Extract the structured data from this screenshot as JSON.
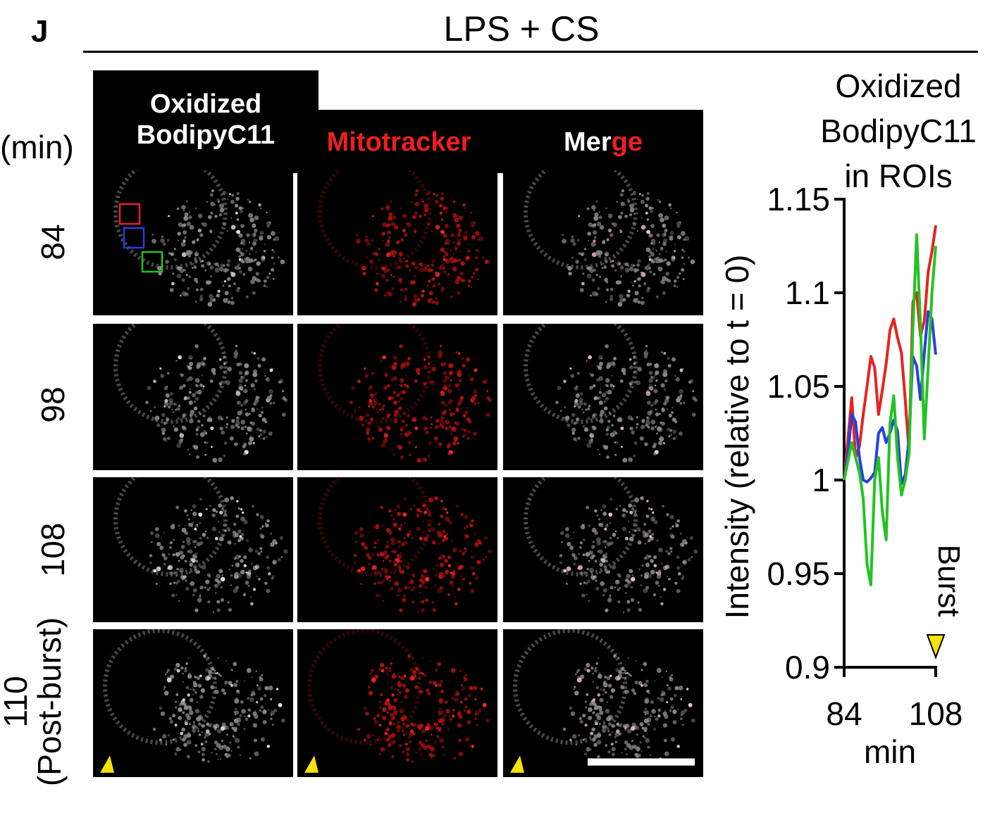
{
  "figure": {
    "panel_letter": "J",
    "condition": "LPS + CS",
    "unit_label": "(min)",
    "columns": [
      {
        "label_plain": "Oxidized",
        "label_line2": "BodipyC11"
      },
      {
        "label": "Mitotracker"
      },
      {
        "label_white": "Mer",
        "label_red": "ge"
      }
    ],
    "rows": [
      {
        "time": "84"
      },
      {
        "time": "98"
      },
      {
        "time": "108"
      },
      {
        "time": "110",
        "note": "(Post-burst)"
      }
    ],
    "roi_colors": [
      "#e52420",
      "#2a3ee0",
      "#22c322"
    ],
    "marker_color": "#f4e20a",
    "icons": [
      "burst-arrowhead-icon",
      "scale-bar"
    ]
  },
  "plot": {
    "title_line1": "Oxidized",
    "title_line2": "BodipyC11",
    "title_line3": "in ROIs",
    "burst_label": "Burst"
  },
  "chart_data": {
    "type": "line",
    "title": "Oxidized BodipyC11 in ROIs",
    "xlabel": "min",
    "ylabel": "Intensity (relative to t = 0)",
    "xlim": [
      84,
      108
    ],
    "ylim": [
      0.9,
      1.15
    ],
    "xticks": [
      84,
      108
    ],
    "yticks": [
      0.9,
      0.95,
      1,
      1.05,
      1.1,
      1.15
    ],
    "ytick_labels": [
      "0.9",
      "0.95",
      "1",
      "1.05",
      "1.1",
      "1.15"
    ],
    "xtick_labels": [
      "84",
      "108"
    ],
    "annotation": {
      "text": "Burst",
      "x": 108
    },
    "x": [
      84,
      85,
      86,
      87,
      88,
      89,
      90,
      91,
      92,
      93,
      94,
      95,
      96,
      97,
      98,
      99,
      100,
      101,
      102,
      103,
      104,
      105,
      106,
      107,
      108
    ],
    "series": [
      {
        "color": "#e52420",
        "values": [
          1.0,
          1.022,
          1.044,
          1.012,
          1.018,
          1.035,
          1.05,
          1.066,
          1.06,
          1.035,
          1.048,
          1.062,
          1.08,
          1.086,
          1.076,
          1.068,
          1.043,
          1.015,
          1.095,
          1.1,
          1.077,
          1.085,
          1.111,
          1.122,
          1.136
        ]
      },
      {
        "color": "#2a3ee0",
        "values": [
          1.0,
          1.014,
          1.035,
          1.031,
          1.012,
          1.0,
          0.999,
          1.001,
          1.004,
          1.025,
          1.028,
          1.02,
          1.025,
          1.032,
          1.026,
          0.998,
          1.003,
          1.022,
          1.066,
          1.061,
          1.043,
          1.068,
          1.09,
          1.086,
          1.067
        ]
      },
      {
        "color": "#22c322",
        "values": [
          1.0,
          1.01,
          1.02,
          1.012,
          1.004,
          0.99,
          0.955,
          0.944,
          1.0,
          1.012,
          0.983,
          0.968,
          1.03,
          1.045,
          1.012,
          0.992,
          1.0,
          1.014,
          1.08,
          1.131,
          1.083,
          1.022,
          1.06,
          1.1,
          1.125
        ]
      }
    ]
  }
}
